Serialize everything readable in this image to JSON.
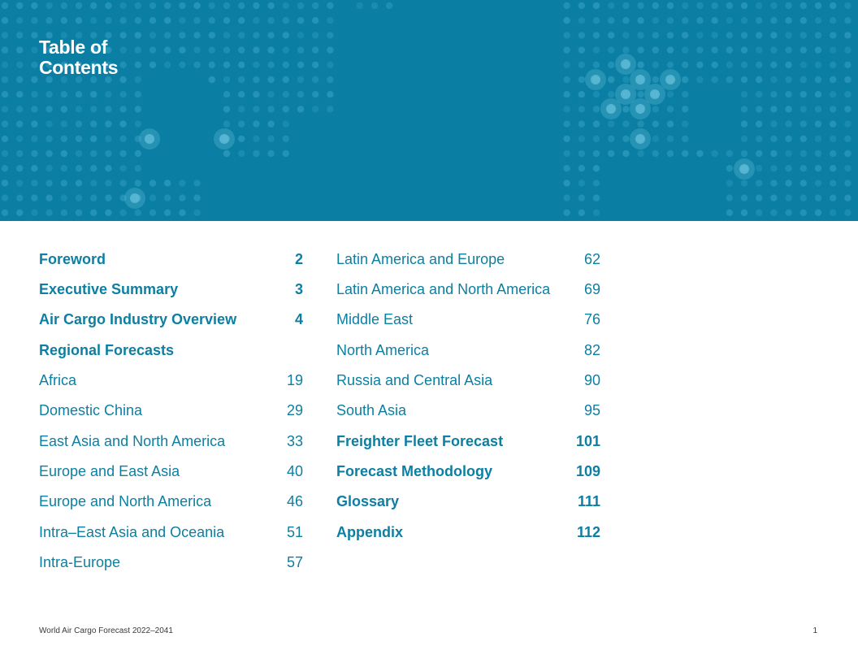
{
  "header": {
    "title_line1": "Table of",
    "title_line2": "Contents",
    "colors": {
      "banner": "#0a7fa3",
      "dots": "#2b98bb",
      "glow": "#5bb8d4",
      "text_accent": "#0c7fa2"
    },
    "background_icon": "world-map-dots-icon"
  },
  "toc": {
    "left": [
      {
        "label": "Foreword",
        "page": "2",
        "bold": true
      },
      {
        "label": "Executive Summary",
        "page": "3",
        "bold": true
      },
      {
        "label": "Air Cargo Industry Overview",
        "page": "4",
        "bold": true
      },
      {
        "label": "Regional Forecasts",
        "page": "",
        "bold": true
      },
      {
        "label": "Africa",
        "page": "19",
        "bold": false
      },
      {
        "label": "Domestic China",
        "page": "29",
        "bold": false
      },
      {
        "label": "East Asia and North America",
        "page": "33",
        "bold": false
      },
      {
        "label": "Europe and East Asia",
        "page": "40",
        "bold": false
      },
      {
        "label": "Europe and North America",
        "page": "46",
        "bold": false
      },
      {
        "label": "Intra–East Asia and Oceania",
        "page": "51",
        "bold": false
      },
      {
        "label": "Intra-Europe",
        "page": "57",
        "bold": false
      }
    ],
    "right": [
      {
        "label": "Latin America and Europe",
        "page": "62",
        "bold": false
      },
      {
        "label": "Latin America and North America",
        "page": "69",
        "bold": false
      },
      {
        "label": "Middle East",
        "page": "76",
        "bold": false
      },
      {
        "label": "North America",
        "page": "82",
        "bold": false
      },
      {
        "label": "Russia and Central Asia",
        "page": "90",
        "bold": false
      },
      {
        "label": "South Asia",
        "page": "95",
        "bold": false
      },
      {
        "label": "Freighter Fleet Forecast",
        "page": "101",
        "bold": true
      },
      {
        "label": "Forecast Methodology",
        "page": "109",
        "bold": true
      },
      {
        "label": "Glossary",
        "page": "111",
        "bold": true
      },
      {
        "label": "Appendix",
        "page": "112",
        "bold": true
      }
    ]
  },
  "footer": {
    "document_title": "World Air Cargo Forecast 2022–2041",
    "page_number": "1"
  }
}
